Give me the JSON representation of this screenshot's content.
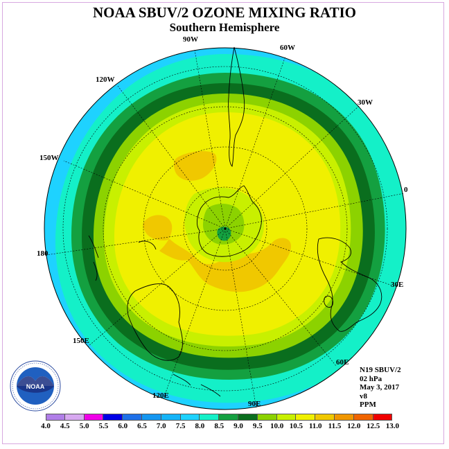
{
  "title": "NOAA SBUV/2 OZONE MIXING RATIO",
  "subtitle": "Southern Hemisphere",
  "longitude_labels": [
    "90W",
    "60W",
    "30W",
    "0",
    "30E",
    "60E",
    "90E",
    "120E",
    "150E",
    "180",
    "150W",
    "120W"
  ],
  "info": {
    "instrument": "N19 SBUV/2",
    "level": "02 hPa",
    "date": "May 3, 2017",
    "version": "v8",
    "units": "PPM"
  },
  "logo_text": "NOAA",
  "colorbar": {
    "ticks": [
      "4.0",
      "4.5",
      "5.0",
      "5.5",
      "6.0",
      "6.5",
      "7.0",
      "7.5",
      "8.0",
      "8.5",
      "9.0",
      "9.5",
      "10.0",
      "10.5",
      "11.0",
      "11.5",
      "12.0",
      "12.5",
      "13.0"
    ],
    "colors": [
      "#b07ee8",
      "#d7a8f0",
      "#f000e8",
      "#0000e6",
      "#1e70e8",
      "#1496f0",
      "#14b4f8",
      "#1ed2ff",
      "#14f0c8",
      "#14a040",
      "#0a6e1e",
      "#8cd200",
      "#c8f000",
      "#f0f000",
      "#f0c800",
      "#f09600",
      "#f06400",
      "#f00000",
      "#a05a3c"
    ]
  },
  "ozone_bands": [
    {
      "value_range": "7.0-7.5",
      "color": "#1ed2ff"
    },
    {
      "value_range": "7.5-8.0",
      "color": "#14f0c8"
    },
    {
      "value_range": "8.0-8.5",
      "color": "#14a040"
    },
    {
      "value_range": "8.5-9.0",
      "color": "#0a6e1e"
    },
    {
      "value_range": "9.0-9.5",
      "color": "#8cd200"
    },
    {
      "value_range": "9.5-10.0",
      "color": "#c8f000"
    },
    {
      "value_range": "10.0-10.5",
      "color": "#f0f000"
    },
    {
      "value_range": "10.5-11.0",
      "color": "#f0c800"
    }
  ]
}
